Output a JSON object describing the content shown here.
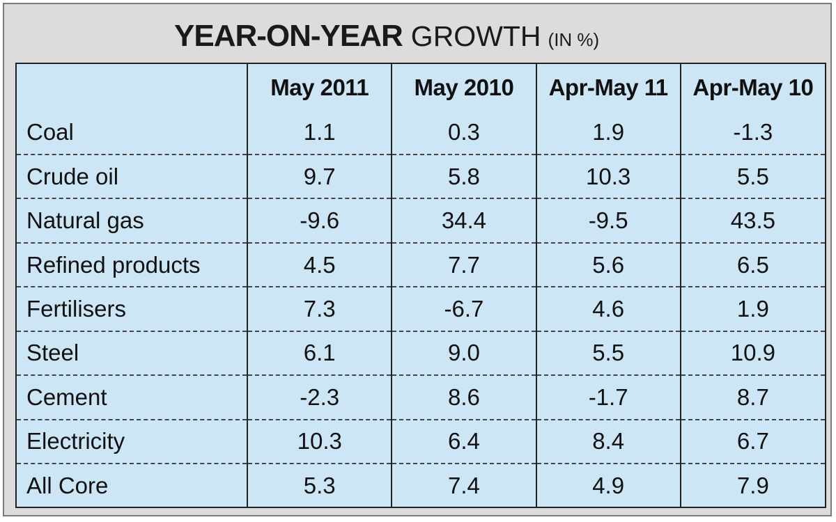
{
  "title": {
    "bold": "YEAR-ON-YEAR",
    "light": "GROWTH",
    "unit": "(IN %)"
  },
  "chart_data": {
    "type": "table",
    "columns": [
      "May 2011",
      "May 2010",
      "Apr-May 11",
      "Apr-May 10"
    ],
    "rows": [
      {
        "label": "Coal",
        "values": [
          "1.1",
          "0.3",
          "1.9",
          "-1.3"
        ]
      },
      {
        "label": "Crude oil",
        "values": [
          "9.7",
          "5.8",
          "10.3",
          "5.5"
        ]
      },
      {
        "label": "Natural gas",
        "values": [
          "-9.6",
          "34.4",
          "-9.5",
          "43.5"
        ]
      },
      {
        "label": "Refined products",
        "values": [
          "4.5",
          "7.7",
          "5.6",
          "6.5"
        ]
      },
      {
        "label": "Fertilisers",
        "values": [
          "7.3",
          "-6.7",
          "4.6",
          "1.9"
        ]
      },
      {
        "label": "Steel",
        "values": [
          "6.1",
          "9.0",
          "5.5",
          "10.9"
        ]
      },
      {
        "label": "Cement",
        "values": [
          "-2.3",
          "8.6",
          "-1.7",
          "8.7"
        ]
      },
      {
        "label": "Electricity",
        "values": [
          "10.3",
          "6.4",
          "8.4",
          "6.7"
        ]
      },
      {
        "label": "All Core",
        "values": [
          "5.3",
          "7.4",
          "4.9",
          "7.9"
        ]
      }
    ]
  }
}
